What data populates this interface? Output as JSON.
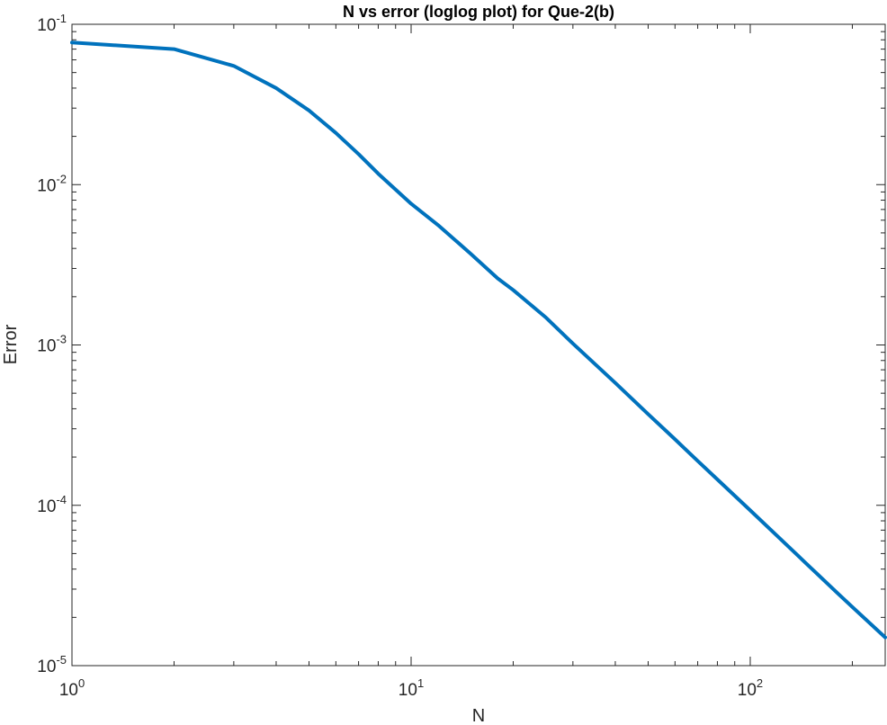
{
  "chart_data": {
    "type": "line",
    "title": "N vs error (loglog plot) for Que-2(b)",
    "xlabel": "N",
    "ylabel": "Error",
    "xscale": "log",
    "yscale": "log",
    "xlim": [
      1,
      250
    ],
    "ylim": [
      1e-05,
      0.1
    ],
    "grid": false,
    "x_ticks": [
      {
        "value": 1,
        "base": "10",
        "exp": "0"
      },
      {
        "value": 10,
        "base": "10",
        "exp": "1"
      },
      {
        "value": 100,
        "base": "10",
        "exp": "2"
      }
    ],
    "y_ticks": [
      {
        "value": 0.1,
        "base": "10",
        "exp": "-1"
      },
      {
        "value": 0.01,
        "base": "10",
        "exp": "-2"
      },
      {
        "value": 0.001,
        "base": "10",
        "exp": "-3"
      },
      {
        "value": 0.0001,
        "base": "10",
        "exp": "-4"
      },
      {
        "value": 1e-05,
        "base": "10",
        "exp": "-5"
      }
    ],
    "series": [
      {
        "color": "#0072BD",
        "x": [
          1,
          2,
          3,
          4,
          5,
          6,
          7,
          8,
          10,
          12,
          15,
          18,
          20,
          25,
          30,
          40,
          50,
          60,
          70,
          80,
          100,
          120,
          150,
          180,
          200,
          250
        ],
        "y": [
          0.077,
          0.07,
          0.055,
          0.04,
          0.029,
          0.021,
          0.0155,
          0.0117,
          0.0076,
          0.0056,
          0.0037,
          0.0026,
          0.0022,
          0.00148,
          0.00102,
          0.00058,
          0.00037,
          0.000258,
          0.000189,
          0.000145,
          9.3e-05,
          6.45e-05,
          4.12e-05,
          2.86e-05,
          2.32e-05,
          1.5e-05
        ]
      }
    ]
  }
}
